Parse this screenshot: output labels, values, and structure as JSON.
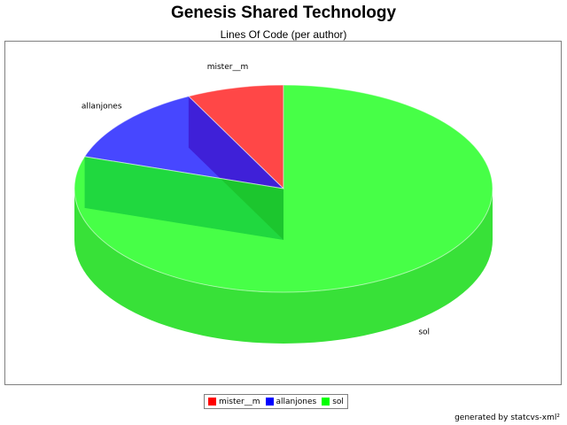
{
  "chart_data": {
    "type": "pie",
    "title": "Genesis Shared Technology",
    "subtitle": "Lines Of Code (per author)",
    "categories": [
      "mister__m",
      "allanjones",
      "sol"
    ],
    "values": [
      7.5,
      12.5,
      80
    ],
    "colors": [
      "#ff0000",
      "#0000ff",
      "#00ff00"
    ],
    "style": "3d",
    "legend_position": "bottom"
  },
  "footer": "generated by statcvs-xml²"
}
